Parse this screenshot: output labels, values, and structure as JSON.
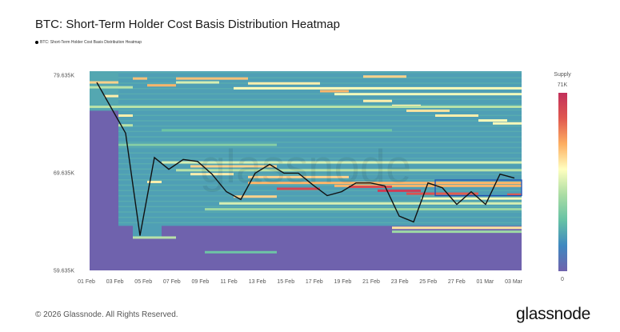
{
  "title": "BTC: Short-Term Holder Cost Basis Distribution Heatmap",
  "footer": "© 2026 Glassnode. All Rights Reserved.",
  "logo": "glassnode",
  "watermark": "glassnode",
  "chart_data": {
    "type": "heatmap",
    "title": "BTC: Short-Term Holder Cost Basis Distribution Heatmap",
    "legend": [
      {
        "name": "BTC: Short-Term Holder Cost Basis Distribution Heatmap",
        "color": "#000000",
        "placement": "top-left"
      }
    ],
    "y_ticks": [
      "79.635K",
      "69.635K",
      "59.635K"
    ],
    "y_tick_values": [
      79.635,
      69.635,
      59.635
    ],
    "ylim": [
      59.635,
      80.05
    ],
    "x_ticks": [
      "01 Feb",
      "03 Feb",
      "05 Feb",
      "07 Feb",
      "09 Feb",
      "11 Feb",
      "13 Feb",
      "15 Feb",
      "17 Feb",
      "19 Feb",
      "21 Feb",
      "23 Feb",
      "25 Feb",
      "27 Feb",
      "01 Mar",
      "03 Mar"
    ],
    "dates": [
      "02 Feb",
      "03 Feb",
      "04 Feb",
      "05 Feb",
      "06 Feb",
      "07 Feb",
      "08 Feb",
      "09 Feb",
      "10 Feb",
      "11 Feb",
      "12 Feb",
      "13 Feb",
      "14 Feb",
      "15 Feb",
      "16 Feb",
      "17 Feb",
      "18 Feb",
      "19 Feb",
      "20 Feb",
      "21 Feb",
      "22 Feb",
      "23 Feb",
      "24 Feb",
      "25 Feb",
      "26 Feb",
      "27 Feb",
      "28 Feb",
      "01 Mar",
      "02 Mar",
      "03 Mar"
    ],
    "price_series": [
      78.9,
      76.3,
      73.7,
      63.2,
      71.2,
      70.0,
      71.0,
      70.8,
      69.5,
      67.7,
      66.9,
      69.6,
      70.5,
      69.6,
      69.6,
      68.4,
      67.3,
      67.7,
      68.6,
      68.6,
      68.3,
      65.2,
      64.6,
      68.6,
      68.1,
      66.4,
      67.7,
      66.4,
      69.5,
      69.1
    ],
    "colorbar": {
      "label": "Supply",
      "max_label": "71K",
      "min_label": "0"
    },
    "colormap": [
      "#6f62ad",
      "#3f88c0",
      "#66c2a5",
      "#abdda4",
      "#ffffbf",
      "#fdae61",
      "#e0584f",
      "#c2305b"
    ],
    "base_regions": [
      {
        "from_price": 59.635,
        "to_price": 80.05,
        "from_day": 0,
        "to_day": 29,
        "intensity": 0.0
      },
      {
        "from_price": 76.0,
        "to_price": 80.05,
        "from_day": 0,
        "to_day": 1,
        "intensity": 0.22
      },
      {
        "from_price": 64.2,
        "to_price": 80.05,
        "from_day": 2,
        "to_day": 29,
        "intensity": 0.2
      },
      {
        "from_price": 63.0,
        "to_price": 65.0,
        "from_day": 3,
        "to_day": 4,
        "intensity": 0.2
      }
    ],
    "bands": [
      [
        78.9,
        0,
        1,
        0.65
      ],
      [
        78.4,
        0,
        2,
        0.45
      ],
      [
        77.5,
        1,
        1,
        0.6
      ],
      [
        75.5,
        2,
        2,
        0.6
      ],
      [
        74.5,
        2,
        2,
        0.45
      ],
      [
        79.3,
        3,
        3,
        0.68
      ],
      [
        79.3,
        6,
        10,
        0.68
      ],
      [
        78.6,
        4,
        5,
        0.7
      ],
      [
        78.9,
        6,
        8,
        0.5
      ],
      [
        78.3,
        10,
        29,
        0.58
      ],
      [
        78.8,
        11,
        15,
        0.6
      ],
      [
        79.5,
        19,
        21,
        0.65
      ],
      [
        78.0,
        16,
        17,
        0.7
      ],
      [
        77.7,
        17,
        29,
        0.55
      ],
      [
        77.0,
        19,
        20,
        0.6
      ],
      [
        76.5,
        21,
        22,
        0.6
      ],
      [
        76.0,
        22,
        24,
        0.62
      ],
      [
        75.5,
        24,
        26,
        0.6
      ],
      [
        75.0,
        27,
        28,
        0.58
      ],
      [
        74.7,
        28,
        29,
        0.58
      ],
      [
        76.4,
        0,
        29,
        0.45
      ],
      [
        72.5,
        2,
        12,
        0.35
      ],
      [
        74.0,
        5,
        20,
        0.3
      ],
      [
        70.7,
        5,
        29,
        0.5
      ],
      [
        70.3,
        7,
        12,
        0.65
      ],
      [
        69.9,
        6,
        29,
        0.45
      ],
      [
        69.5,
        7,
        9,
        0.6
      ],
      [
        69.2,
        11,
        17,
        0.65
      ],
      [
        68.6,
        11,
        29,
        0.7
      ],
      [
        68.3,
        17,
        29,
        0.7
      ],
      [
        68.0,
        13,
        15,
        0.92
      ],
      [
        68.2,
        18,
        20,
        0.9
      ],
      [
        67.8,
        20,
        22,
        0.95
      ],
      [
        67.5,
        22,
        23,
        0.88
      ],
      [
        67.5,
        24,
        26,
        0.85
      ],
      [
        67.4,
        29,
        29,
        0.85
      ],
      [
        67.2,
        10,
        12,
        0.65
      ],
      [
        66.5,
        9,
        29,
        0.5
      ],
      [
        65.9,
        8,
        29,
        0.4
      ],
      [
        64.0,
        21,
        29,
        0.62
      ],
      [
        63.6,
        21,
        29,
        0.4
      ],
      [
        63.0,
        3,
        5,
        0.45
      ],
      [
        61.5,
        8,
        12,
        0.3
      ],
      [
        68.7,
        4,
        4,
        0.6
      ],
      [
        67.0,
        23,
        29,
        0.55
      ]
    ],
    "highlight_box": {
      "from_day": 24,
      "to_day": 29,
      "from_price": 67.3,
      "to_price": 68.9,
      "color": "#1f4fb5"
    }
  }
}
